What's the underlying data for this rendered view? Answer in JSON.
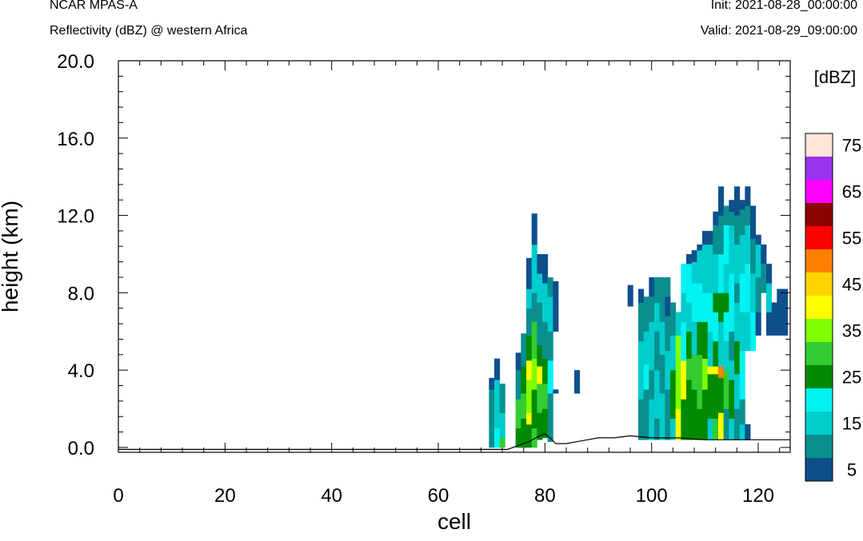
{
  "header": {
    "model": "NCAR MPAS-A",
    "field": "Reflectivity (dBZ) @ western Africa",
    "init": "Init: 2021-08-28_00:00:00",
    "valid": "Valid: 2021-08-29_09:00:00"
  },
  "chart_data": {
    "type": "heatmap",
    "xlabel": "cell",
    "ylabel": "height (km)",
    "xlim": [
      0,
      126
    ],
    "ylim": [
      -0.25,
      20
    ],
    "x_ticks": [
      "0",
      "20",
      "40",
      "60",
      "80",
      "100",
      "120"
    ],
    "y_ticks": [
      "0.0",
      "4.0",
      "8.0",
      "12.0",
      "16.0",
      "20.0"
    ],
    "colorbar": {
      "unit_label": "[dBZ]",
      "levels": [
        5,
        10,
        15,
        20,
        25,
        30,
        35,
        40,
        45,
        50,
        55,
        60,
        65,
        70,
        75
      ],
      "tick_labels": [
        "5",
        "15",
        "25",
        "35",
        "45",
        "55",
        "65",
        "75"
      ],
      "colors": [
        "#0e4f8c",
        "#0a8e8e",
        "#00cccc",
        "#00f2f2",
        "#008a00",
        "#33cc33",
        "#80ff00",
        "#ffff00",
        "#ffd400",
        "#ff8000",
        "#ff0000",
        "#8b0000",
        "#ff00ff",
        "#9933ee",
        "#ffe4d8"
      ]
    },
    "columns": [
      {
        "x": 70,
        "cells": [
          [
            0.0,
            3.0,
            1
          ],
          [
            3.0,
            3.6,
            0
          ]
        ]
      },
      {
        "x": 71,
        "cells": [
          [
            0.0,
            1.0,
            3
          ],
          [
            1.0,
            3.5,
            2
          ],
          [
            3.5,
            4.6,
            0
          ]
        ]
      },
      {
        "x": 72,
        "cells": [
          [
            0.0,
            0.5,
            5
          ],
          [
            0.5,
            1.8,
            2
          ],
          [
            1.8,
            3.3,
            1
          ]
        ]
      },
      {
        "x": 75,
        "cells": [
          [
            0.0,
            1.0,
            4
          ],
          [
            1.0,
            2.5,
            5
          ],
          [
            2.5,
            4.0,
            1
          ],
          [
            4.0,
            4.9,
            0
          ]
        ]
      },
      {
        "x": 76,
        "cells": [
          [
            0.0,
            1.5,
            4
          ],
          [
            1.5,
            2.8,
            5
          ],
          [
            2.8,
            4.2,
            4
          ],
          [
            4.2,
            5.9,
            1
          ]
        ]
      },
      {
        "x": 77,
        "cells": [
          [
            0.0,
            1.2,
            4
          ],
          [
            1.2,
            1.8,
            7
          ],
          [
            1.8,
            3.5,
            6
          ],
          [
            3.5,
            4.5,
            7
          ],
          [
            4.5,
            5.8,
            4
          ],
          [
            5.8,
            7.2,
            1
          ],
          [
            7.2,
            8.2,
            2
          ],
          [
            8.2,
            9.8,
            0
          ]
        ]
      },
      {
        "x": 78,
        "cells": [
          [
            0.0,
            1.0,
            5
          ],
          [
            1.0,
            3.0,
            4
          ],
          [
            3.0,
            4.6,
            6
          ],
          [
            4.6,
            6.5,
            5
          ],
          [
            6.5,
            8.0,
            1
          ],
          [
            8.0,
            10.5,
            2
          ],
          [
            10.5,
            12.1,
            0
          ]
        ]
      },
      {
        "x": 79,
        "cells": [
          [
            0.4,
            1.8,
            4
          ],
          [
            1.8,
            3.3,
            5
          ],
          [
            3.3,
            4.2,
            7
          ],
          [
            4.2,
            5.3,
            4
          ],
          [
            5.3,
            7.5,
            1
          ],
          [
            7.5,
            9.0,
            2
          ],
          [
            9.0,
            10.0,
            0
          ]
        ]
      },
      {
        "x": 80,
        "cells": [
          [
            0.5,
            2.0,
            4
          ],
          [
            2.0,
            3.3,
            5
          ],
          [
            3.3,
            4.6,
            4
          ],
          [
            4.6,
            6.5,
            1
          ],
          [
            6.5,
            8.5,
            2
          ],
          [
            8.5,
            10.0,
            0
          ]
        ]
      },
      {
        "x": 81,
        "cells": [
          [
            0.3,
            2.8,
            1
          ],
          [
            2.8,
            4.5,
            3
          ],
          [
            4.5,
            6.0,
            1
          ],
          [
            6.0,
            7.8,
            2
          ],
          [
            7.8,
            8.8,
            1
          ]
        ]
      },
      {
        "x": 82,
        "cells": [
          [
            2.8,
            3.0,
            0
          ],
          [
            6.0,
            8.6,
            0
          ]
        ]
      },
      {
        "x": 86,
        "cells": [
          [
            2.8,
            4.0,
            0
          ]
        ]
      },
      {
        "x": 96,
        "cells": [
          [
            7.3,
            8.4,
            0
          ]
        ]
      },
      {
        "x": 98,
        "cells": [
          [
            0.4,
            2.5,
            1
          ],
          [
            2.5,
            5.5,
            2
          ],
          [
            5.5,
            7.5,
            1
          ],
          [
            7.5,
            8.2,
            0
          ]
        ]
      },
      {
        "x": 99,
        "cells": [
          [
            0.4,
            3.0,
            1
          ],
          [
            3.0,
            4.3,
            3
          ],
          [
            4.3,
            6.0,
            2
          ],
          [
            6.0,
            7.8,
            1
          ]
        ]
      },
      {
        "x": 100,
        "cells": [
          [
            0.4,
            2.5,
            2
          ],
          [
            2.5,
            4.0,
            1
          ],
          [
            4.0,
            6.5,
            2
          ],
          [
            6.5,
            7.8,
            1
          ],
          [
            7.8,
            8.8,
            0
          ]
        ]
      },
      {
        "x": 101,
        "cells": [
          [
            0.4,
            1.5,
            1
          ],
          [
            1.5,
            4.0,
            2
          ],
          [
            4.0,
            6.0,
            1
          ],
          [
            6.0,
            7.5,
            2
          ],
          [
            7.5,
            8.8,
            1
          ]
        ]
      },
      {
        "x": 102,
        "cells": [
          [
            0.4,
            2.8,
            2
          ],
          [
            2.8,
            4.8,
            1
          ],
          [
            4.8,
            6.5,
            2
          ],
          [
            6.5,
            8.8,
            1
          ]
        ]
      },
      {
        "x": 103,
        "cells": [
          [
            0.4,
            3.0,
            1
          ],
          [
            3.0,
            5.0,
            2
          ],
          [
            5.0,
            6.8,
            1
          ],
          [
            6.8,
            7.8,
            0
          ],
          [
            7.8,
            8.8,
            1
          ]
        ]
      },
      {
        "x": 104,
        "cells": [
          [
            0.4,
            1.5,
            2
          ],
          [
            1.5,
            4.0,
            4
          ],
          [
            4.0,
            5.8,
            2
          ],
          [
            5.8,
            7.5,
            1
          ]
        ]
      },
      {
        "x": 105,
        "cells": [
          [
            0.4,
            2.0,
            7
          ],
          [
            2.0,
            5.8,
            6
          ],
          [
            5.8,
            7.0,
            2
          ]
        ]
      },
      {
        "x": 106,
        "cells": [
          [
            0.4,
            2.5,
            4
          ],
          [
            2.5,
            4.5,
            7
          ],
          [
            4.5,
            6.5,
            3
          ],
          [
            6.5,
            8.0,
            2
          ],
          [
            8.0,
            9.5,
            3
          ]
        ]
      },
      {
        "x": 107,
        "cells": [
          [
            0.4,
            3.5,
            4
          ],
          [
            3.5,
            4.6,
            5
          ],
          [
            4.6,
            6.0,
            4
          ],
          [
            6.0,
            7.5,
            2
          ],
          [
            7.5,
            9.5,
            3
          ],
          [
            9.5,
            10.0,
            0
          ]
        ]
      },
      {
        "x": 108,
        "cells": [
          [
            0.4,
            3.0,
            4
          ],
          [
            3.0,
            4.8,
            5
          ],
          [
            4.8,
            6.5,
            2
          ],
          [
            6.5,
            8.5,
            3
          ],
          [
            8.5,
            9.6,
            2
          ],
          [
            9.6,
            10.2,
            0
          ]
        ]
      },
      {
        "x": 109,
        "cells": [
          [
            0.4,
            2.0,
            4
          ],
          [
            2.0,
            4.8,
            5
          ],
          [
            4.8,
            6.5,
            4
          ],
          [
            6.5,
            8.5,
            3
          ],
          [
            8.5,
            10.2,
            2
          ],
          [
            10.2,
            10.5,
            0
          ]
        ]
      },
      {
        "x": 110,
        "cells": [
          [
            0.4,
            3.0,
            4
          ],
          [
            3.0,
            4.6,
            6
          ],
          [
            4.6,
            6.5,
            4
          ],
          [
            6.5,
            8.0,
            3
          ],
          [
            8.0,
            10.5,
            2
          ],
          [
            10.5,
            11.2,
            0
          ]
        ]
      },
      {
        "x": 111,
        "cells": [
          [
            0.4,
            1.5,
            2
          ],
          [
            1.5,
            3.8,
            4
          ],
          [
            3.8,
            4.2,
            7
          ],
          [
            4.2,
            6.0,
            2
          ],
          [
            6.0,
            8.0,
            3
          ],
          [
            8.0,
            10.5,
            2
          ],
          [
            10.5,
            11.2,
            0
          ]
        ]
      },
      {
        "x": 112,
        "cells": [
          [
            0.4,
            1.5,
            5
          ],
          [
            1.5,
            3.8,
            4
          ],
          [
            3.8,
            4.2,
            7
          ],
          [
            4.2,
            5.5,
            4
          ],
          [
            5.5,
            7.0,
            3
          ],
          [
            7.0,
            8.0,
            4
          ],
          [
            8.0,
            10.0,
            2
          ],
          [
            10.0,
            11.5,
            1
          ],
          [
            11.5,
            12.2,
            0
          ]
        ]
      },
      {
        "x": 113,
        "cells": [
          [
            0.4,
            1.8,
            7
          ],
          [
            1.8,
            3.6,
            4
          ],
          [
            3.6,
            4.2,
            9
          ],
          [
            4.2,
            6.5,
            2
          ],
          [
            6.5,
            8.0,
            4
          ],
          [
            8.0,
            10.0,
            3
          ],
          [
            10.0,
            12.0,
            1
          ],
          [
            12.0,
            13.5,
            0
          ]
        ]
      },
      {
        "x": 114,
        "cells": [
          [
            0.4,
            2.0,
            1
          ],
          [
            2.0,
            4.0,
            5
          ],
          [
            4.0,
            5.5,
            2
          ],
          [
            5.5,
            7.0,
            3
          ],
          [
            7.0,
            8.0,
            4
          ],
          [
            8.0,
            9.5,
            2
          ],
          [
            9.5,
            11.5,
            3
          ],
          [
            11.5,
            12.5,
            1
          ]
        ]
      },
      {
        "x": 115,
        "cells": [
          [
            0.4,
            1.5,
            2
          ],
          [
            1.5,
            3.5,
            4
          ],
          [
            3.5,
            4.5,
            2
          ],
          [
            4.5,
            6.0,
            1
          ],
          [
            6.0,
            9.0,
            3
          ],
          [
            9.0,
            11.5,
            2
          ],
          [
            11.5,
            12.2,
            1
          ],
          [
            12.2,
            12.8,
            0
          ]
        ]
      },
      {
        "x": 116,
        "cells": [
          [
            0.4,
            2.0,
            1
          ],
          [
            2.0,
            3.8,
            2
          ],
          [
            3.8,
            5.5,
            4
          ],
          [
            5.5,
            7.5,
            2
          ],
          [
            7.5,
            8.5,
            1
          ],
          [
            8.5,
            10.5,
            2
          ],
          [
            10.5,
            12.0,
            1
          ],
          [
            12.0,
            13.5,
            0
          ]
        ]
      },
      {
        "x": 117,
        "cells": [
          [
            0.4,
            1.2,
            2
          ],
          [
            1.2,
            2.5,
            1
          ],
          [
            2.5,
            5.0,
            3
          ],
          [
            5.0,
            7.0,
            2
          ],
          [
            7.0,
            9.0,
            3
          ],
          [
            9.0,
            11.0,
            2
          ],
          [
            11.0,
            12.3,
            1
          ],
          [
            12.3,
            12.8,
            0
          ]
        ]
      },
      {
        "x": 118,
        "cells": [
          [
            0.4,
            1.2,
            0
          ],
          [
            5.0,
            7.0,
            2
          ],
          [
            7.0,
            9.5,
            3
          ],
          [
            9.5,
            11.5,
            2
          ],
          [
            11.5,
            12.5,
            1
          ],
          [
            12.5,
            13.5,
            0
          ]
        ]
      },
      {
        "x": 119,
        "cells": [
          [
            5.0,
            7.0,
            3
          ],
          [
            7.0,
            9.0,
            2
          ],
          [
            9.0,
            10.8,
            1
          ],
          [
            10.8,
            12.5,
            0
          ]
        ]
      },
      {
        "x": 120,
        "cells": [
          [
            5.8,
            7.0,
            0
          ],
          [
            7.0,
            8.8,
            1
          ],
          [
            8.8,
            10.5,
            2
          ],
          [
            10.5,
            11.0,
            0
          ]
        ]
      },
      {
        "x": 121,
        "cells": [
          [
            8.0,
            9.5,
            1
          ],
          [
            9.5,
            10.5,
            0
          ]
        ]
      },
      {
        "x": 122,
        "cells": [
          [
            5.8,
            7.0,
            0
          ],
          [
            7.0,
            8.5,
            2
          ],
          [
            8.5,
            9.5,
            0
          ]
        ]
      },
      {
        "x": 123,
        "cells": [
          [
            5.8,
            7.5,
            0
          ]
        ]
      },
      {
        "x": 124,
        "cells": [
          [
            5.8,
            8.2,
            0
          ]
        ]
      },
      {
        "x": 125,
        "cells": [
          [
            5.8,
            8.2,
            0
          ]
        ]
      }
    ],
    "terrain": [
      [
        0,
        -0.1
      ],
      [
        73,
        -0.1
      ],
      [
        75,
        0.1
      ],
      [
        77,
        0.3
      ],
      [
        79,
        0.6
      ],
      [
        80,
        0.7
      ],
      [
        81,
        0.5
      ],
      [
        82,
        0.2
      ],
      [
        84,
        0.2
      ],
      [
        86,
        0.3
      ],
      [
        88,
        0.4
      ],
      [
        90,
        0.5
      ],
      [
        93,
        0.5
      ],
      [
        96,
        0.6
      ],
      [
        100,
        0.5
      ],
      [
        105,
        0.5
      ],
      [
        110,
        0.4
      ],
      [
        115,
        0.4
      ],
      [
        120,
        0.4
      ],
      [
        126,
        0.4
      ]
    ]
  }
}
